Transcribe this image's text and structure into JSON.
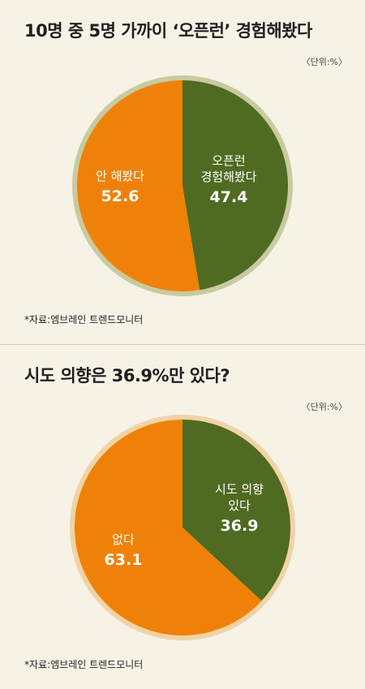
{
  "charts": [
    {
      "title": "10명 중 5명 가까이 ‘오픈런’ 경험해봤다",
      "unit": "〈단위:%〉",
      "source": "*자료:엠브레인 트렌드모니터"
    },
    {
      "title": "시도 의향은 36.9%만 있다?",
      "unit": "〈단위:%〉",
      "source": "*자료:엠브레인 트렌드모니터"
    }
  ],
  "chart_data": [
    {
      "type": "pie",
      "title": "10명 중 5명 가까이 ‘오픈런’ 경험해봤다",
      "slices": [
        {
          "label_lines": [
            "오픈런",
            "경험해봤다"
          ],
          "value": 47.4,
          "value_text": "47.4",
          "color": "#4f6b21"
        },
        {
          "label_lines": [
            "안 해봤다"
          ],
          "value": 52.6,
          "value_text": "52.6",
          "color": "#ef8108"
        }
      ]
    },
    {
      "type": "pie",
      "title": "시도 의향은 36.9%만 있다?",
      "slices": [
        {
          "label_lines": [
            "시도 의향",
            "있다"
          ],
          "value": 36.9,
          "value_text": "36.9",
          "color": "#4f6b21"
        },
        {
          "label_lines": [
            "없다"
          ],
          "value": 63.1,
          "value_text": "63.1",
          "color": "#ef8108"
        }
      ]
    }
  ]
}
